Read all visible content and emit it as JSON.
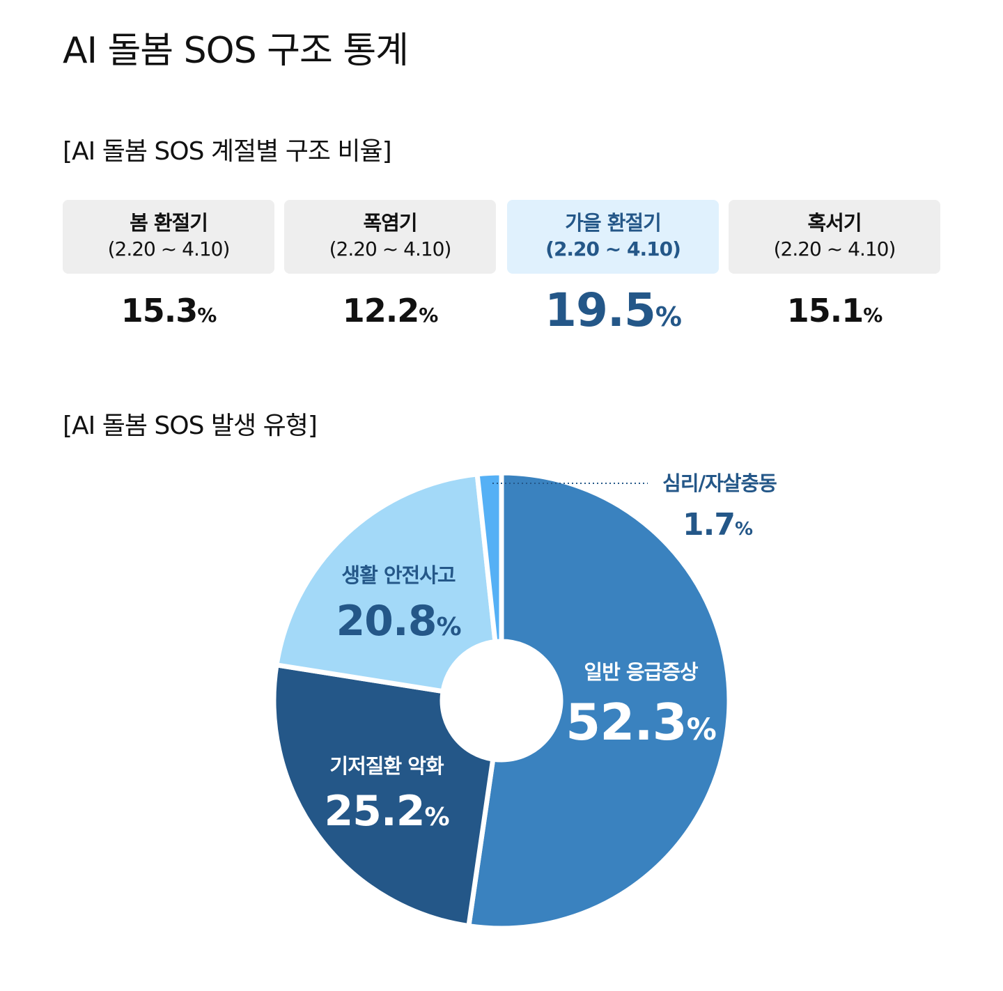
{
  "title": "AI 돌봄 SOS 구조 통계",
  "season_heading": "[AI 돌봄 SOS 계절별 구조 비율]",
  "seasons": [
    {
      "name": "봄 환절기",
      "range": "(2.20 ~ 4.10)",
      "value": "15.3",
      "unit": "%"
    },
    {
      "name": "폭염기",
      "range": "(2.20 ~ 4.10)",
      "value": "12.2",
      "unit": "%"
    },
    {
      "name": "가을 환절기",
      "range": "(2.20 ~ 4.10)",
      "value": "19.5",
      "unit": "%"
    },
    {
      "name": "혹서기",
      "range": "(2.20 ~ 4.10)",
      "value": "15.1",
      "unit": "%"
    }
  ],
  "type_heading": "[AI 돌봄 SOS 발생 유형]",
  "chart_data": {
    "type": "pie",
    "donut": true,
    "title": "[AI 돌봄 SOS 발생 유형]",
    "slices": [
      {
        "label": "일반 응급증상",
        "value": 52.3,
        "color": "#3a82bf",
        "text_color": "#ffffff"
      },
      {
        "label": "기저질환 악화",
        "value": 25.2,
        "color": "#245788",
        "text_color": "#ffffff"
      },
      {
        "label": "생활 안전사고",
        "value": 20.8,
        "color": "#a3d9f8",
        "text_color": "#245788"
      },
      {
        "label": "심리/자살충동",
        "value": 1.7,
        "color": "#55b0f5",
        "text_color": "#245788"
      }
    ],
    "unit": "%"
  }
}
